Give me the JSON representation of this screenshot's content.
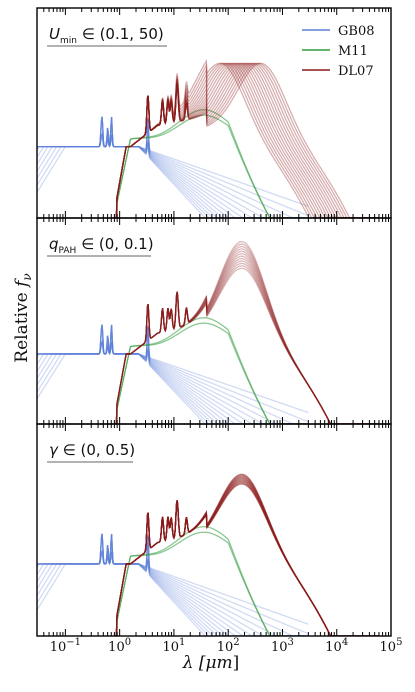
{
  "chart_data": {
    "type": "line",
    "xlabel_main": "λ [",
    "xlabel_unit": "μm",
    "xlabel_end": "]",
    "ylabel_main": "Relative ",
    "ylabel_sym": "f",
    "ylabel_sub": "ν",
    "x_scale": "log",
    "xlim": [
      0.03,
      100000
    ],
    "x_ticks": [
      {
        "base": "10",
        "exp": "−1"
      },
      {
        "base": "10",
        "exp": "0"
      },
      {
        "base": "10",
        "exp": "1"
      },
      {
        "base": "10",
        "exp": "2"
      },
      {
        "base": "10",
        "exp": "3"
      },
      {
        "base": "10",
        "exp": "4"
      },
      {
        "base": "10",
        "exp": "5"
      }
    ],
    "legend": {
      "placement": "top-right",
      "entries": [
        {
          "label": "GB08",
          "color": "#5b7fd9"
        },
        {
          "label": "M11",
          "color": "#2e9a3a"
        },
        {
          "label": "DL07",
          "color": "#8b1a1a"
        }
      ]
    },
    "panels": [
      {
        "sym": "U",
        "sub": "min",
        "range": "∈ (0.1, 50)",
        "varied": "DL07"
      },
      {
        "sym": "q",
        "sub": "PAH",
        "range": "∈ (0, 0.1)",
        "varied": "DL07"
      },
      {
        "sym": "γ",
        "sub": "",
        "range": "∈ (0, 0.5)",
        "varied": "DL07"
      }
    ],
    "series": [
      {
        "name": "GB08",
        "color": "#5b7fd9",
        "x": [
          0.03,
          0.1,
          0.3,
          1,
          3,
          10,
          100,
          1000
        ],
        "y": [
          -2.0,
          -0.6,
          -0.2,
          0.0,
          0.0,
          -0.7,
          -2.0,
          -3.5
        ]
      },
      {
        "name": "M11",
        "color": "#2e9a3a",
        "x": [
          0.9,
          1.5,
          3,
          10,
          30,
          100,
          300
        ],
        "y": [
          -3.0,
          -0.2,
          0.2,
          0.9,
          1.5,
          0.8,
          -1.5
        ]
      },
      {
        "name": "DL07",
        "color": "#8b1a1a",
        "x": [
          0.9,
          1.5,
          3,
          7,
          20,
          100,
          300,
          1000,
          10000,
          30000
        ],
        "y": [
          -3.0,
          0.0,
          0.9,
          1.9,
          2.7,
          3.5,
          3.3,
          2.3,
          -0.6,
          -2.2
        ]
      }
    ]
  }
}
